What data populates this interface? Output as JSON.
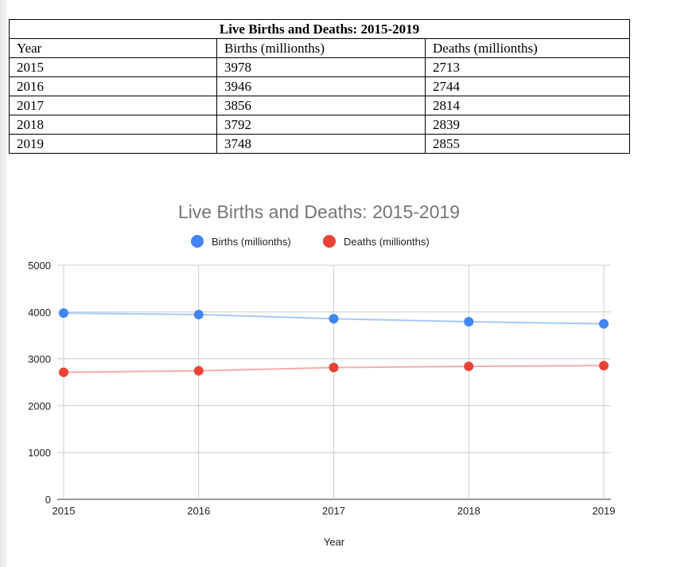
{
  "table": {
    "title": "Live Births and Deaths: 2015-2019",
    "headers": [
      "Year",
      "Births (millionths)",
      "Deaths (millionths)"
    ],
    "rows": [
      [
        "2015",
        "3978",
        "2713"
      ],
      [
        "2016",
        "3946",
        "2744"
      ],
      [
        "2017",
        "3856",
        "2814"
      ],
      [
        "2018",
        "3792",
        "2839"
      ],
      [
        "2019",
        "3748",
        "2855"
      ]
    ]
  },
  "chart_data": {
    "type": "line",
    "title": "Live Births and Deaths: 2015-2019",
    "xlabel": "Year",
    "ylabel": "",
    "x": [
      2015,
      2016,
      2017,
      2018,
      2019
    ],
    "x_tick_labels": [
      "2015",
      "2016",
      "2017",
      "2018",
      "2019"
    ],
    "y_tick_labels": [
      "0",
      "1000",
      "2000",
      "3000",
      "4000",
      "5000"
    ],
    "ylim": [
      0,
      5000
    ],
    "grid": true,
    "legend_position": "top",
    "series": [
      {
        "name": "Births (millionths)",
        "values": [
          3978,
          3946,
          3856,
          3792,
          3748
        ],
        "color": "#4285f4",
        "line_color": "#a8c7fa"
      },
      {
        "name": "Deaths (millionths)",
        "values": [
          2713,
          2744,
          2814,
          2839,
          2855
        ],
        "color": "#ea4335",
        "line_color": "#f6aea9"
      }
    ]
  }
}
